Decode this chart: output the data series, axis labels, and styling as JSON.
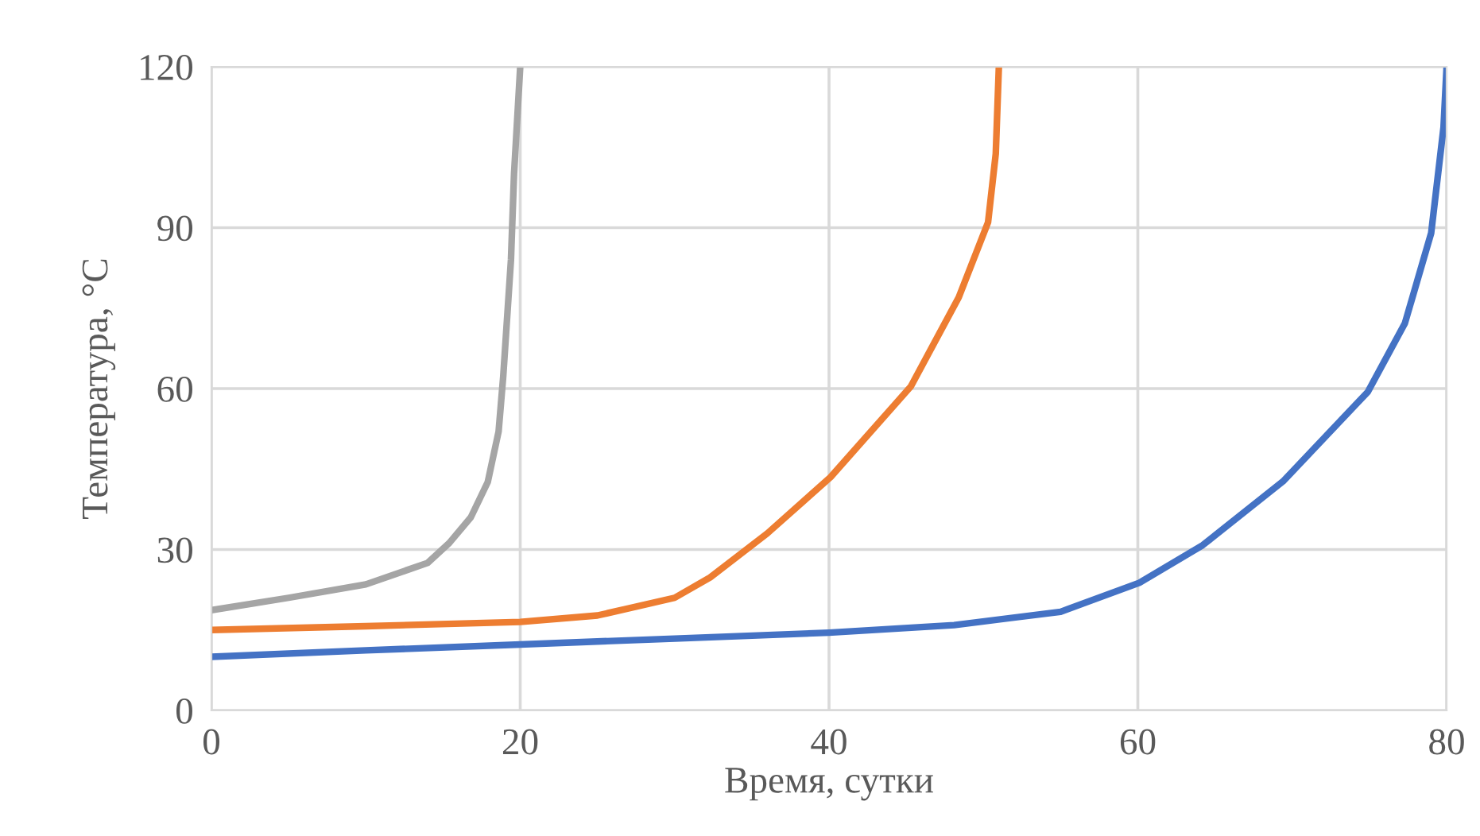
{
  "chart_data": {
    "type": "line",
    "xlabel": "Время, сутки",
    "ylabel": "Температура, °C",
    "xlim": [
      0,
      80
    ],
    "xticks": [
      0,
      20,
      40,
      60,
      80
    ],
    "ylim": [
      0,
      120
    ],
    "yticks": [
      0,
      30,
      60,
      90,
      120
    ],
    "grid": true,
    "line_style": "solid",
    "series": [
      {
        "color": "#4472c4",
        "x": [
          0,
          10,
          20,
          30,
          40,
          48.1,
          55,
          60.1,
          64.2,
          69.4,
          74.9,
          77.3,
          79,
          79.8,
          80
        ],
        "values": [
          10,
          11.2,
          12.3,
          13.4,
          14.5,
          15.9,
          18.4,
          23.8,
          30.8,
          42.7,
          59.4,
          72.2,
          89,
          108.7,
          120
        ]
      },
      {
        "color": "#ed7d31",
        "x": [
          0,
          10,
          20,
          25,
          30,
          32.3,
          36,
          40.1,
          45.3,
          48.4,
          50.3,
          50.8,
          51
        ],
        "values": [
          15,
          15.7,
          16.5,
          17.7,
          21,
          24.8,
          33,
          43.5,
          60.4,
          77,
          91,
          103.8,
          120
        ]
      },
      {
        "color": "#a5a5a5",
        "x": [
          0,
          5,
          10,
          14,
          15.4,
          16.8,
          17.9,
          18.6,
          18.9,
          19.4,
          19.6,
          20
        ],
        "values": [
          18.7,
          21,
          23.5,
          27.5,
          31.2,
          36,
          42.6,
          52,
          62.3,
          84,
          100,
          120
        ]
      }
    ]
  }
}
